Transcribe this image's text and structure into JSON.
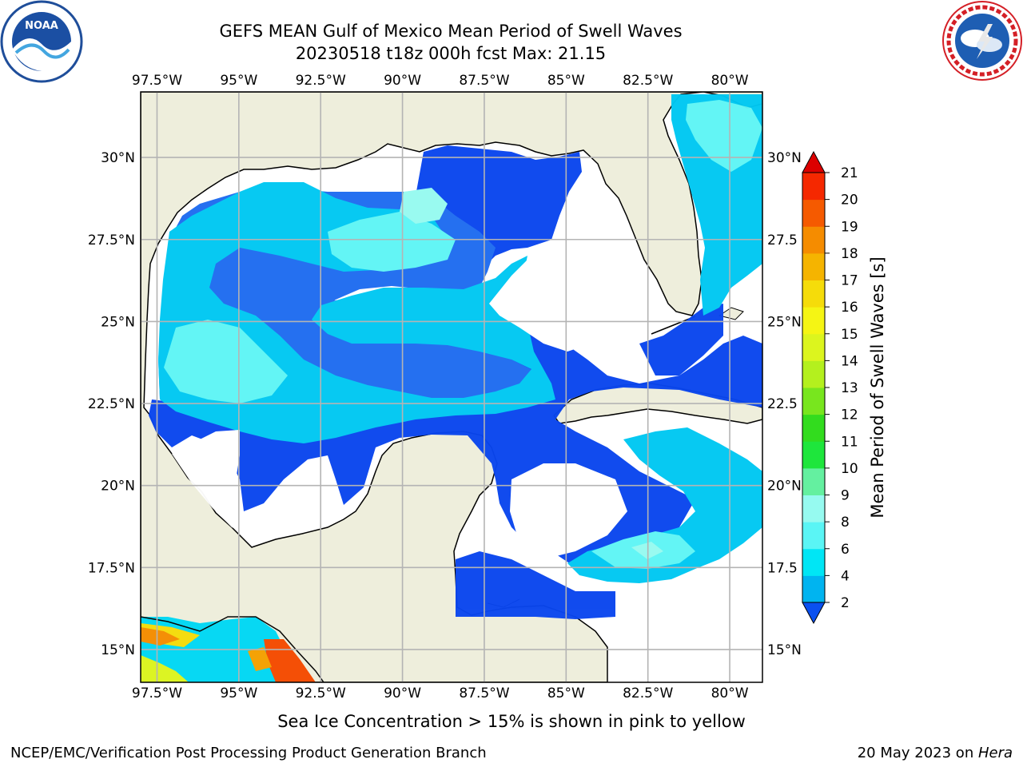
{
  "header": {
    "title_line1": "GEFS MEAN Gulf of Mexico Mean Period of Swell Waves",
    "title_line2": "20230518 t18z 000h fcst   Max: 21.15"
  },
  "logos": {
    "left": {
      "icon": "noaa-logo",
      "text": "NOAA"
    },
    "right": {
      "icon": "national-weather-service-logo",
      "text": "NATIONAL WEATHER SERVICE"
    }
  },
  "map": {
    "lon_labels": [
      "97.5°W",
      "95°W",
      "92.5°W",
      "90°W",
      "87.5°W",
      "85°W",
      "82.5°W",
      "80°W"
    ],
    "lat_labels_left": [
      "30°N",
      "27.5°N",
      "25°N",
      "22.5°N",
      "20°N",
      "17.5°N",
      "15°N"
    ],
    "lat_labels_right": [
      "30°N",
      "27.5",
      "25°N",
      "22.5",
      "20°N",
      "17.5",
      "15°N"
    ],
    "lon_range": [
      -98,
      -79
    ],
    "lat_range": [
      14,
      32
    ]
  },
  "colorbar": {
    "label": "Mean Period of Swell Waves [s]",
    "ticks": [
      "2",
      "4",
      "6",
      "8",
      "9",
      "10",
      "11",
      "12",
      "13",
      "14",
      "15",
      "16",
      "17",
      "18",
      "19",
      "20",
      "21"
    ],
    "colors": [
      "#0a50f0",
      "#00b4f0",
      "#00e6f5",
      "#5af5f5",
      "#96faf0",
      "#64f0a0",
      "#1ee63c",
      "#32dc1e",
      "#78e61e",
      "#b4f01e",
      "#dcf51e",
      "#f5f514",
      "#f5dc0a",
      "#f5b400",
      "#f58c00",
      "#f55a00",
      "#f52800",
      "#dc0000"
    ]
  },
  "notes": {
    "sea_ice": "Sea Ice Concentration > 15% is shown in pink to yellow",
    "credit": "NCEP/EMC/Verification Post Processing Product Generation Branch",
    "date_prefix": "20 May 2023 on ",
    "host": "Hera"
  }
}
